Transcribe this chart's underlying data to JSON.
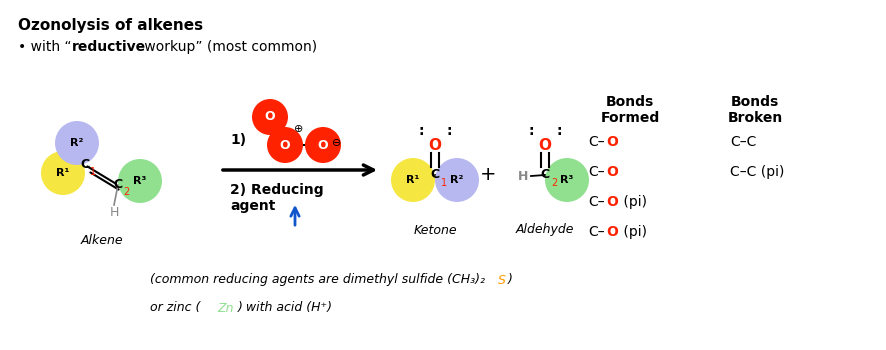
{
  "title": "Ozonolysis of alkenes",
  "subtitle_plain": " with “reductive workup” (most common)",
  "subtitle_bold": "reductive",
  "bg_color": "#ffffff",
  "alkene_label": "Alkene",
  "ketone_label": "Ketone",
  "aldehyde_label": "Aldehyde",
  "bonds_formed_title": "Bonds\nFormed",
  "bonds_broken_title": "Bonds\nBroken",
  "bonds_formed": [
    "C–O",
    "C–O",
    "C–O (pi)",
    "C–O (pi)"
  ],
  "bonds_broken": [
    "C–C",
    "C–C (pi)"
  ],
  "footer": "(common reducing agents are dimethyl sulfide (CH₃)₂S)\nor zinc (Zn) with acid (H⁺)",
  "color_yellow": "#f5e642",
  "color_blue": "#b8b8f0",
  "color_green": "#90e090",
  "color_red": "#ff2200",
  "color_orange": "#ff9900",
  "color_gray": "#888888",
  "arrow_color": "#000000",
  "blue_arrow_color": "#1155cc"
}
